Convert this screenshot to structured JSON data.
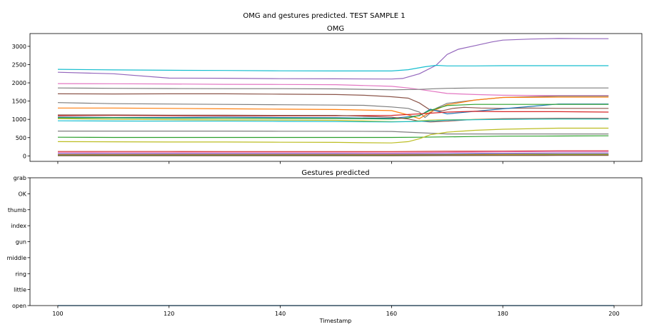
{
  "figure_title": "OMG and gestures predicted. TEST SAMPLE 1",
  "chart_data": [
    {
      "type": "line",
      "title": "OMG",
      "xlabel": "",
      "ylabel": "",
      "xlim": [
        95,
        205
      ],
      "ylim": [
        -150,
        3350
      ],
      "xticks": [
        100,
        120,
        140,
        160,
        180,
        200
      ],
      "xtick_labels_visible": false,
      "yticks": [
        0,
        500,
        1000,
        1500,
        2000,
        2500,
        3000
      ],
      "grid": false,
      "legend": "none",
      "series": [
        {
          "color": "#9467bd",
          "x": [
            100,
            110,
            120,
            130,
            140,
            150,
            160,
            162,
            165,
            168,
            170,
            172,
            175,
            178,
            180,
            185,
            190,
            195,
            199
          ],
          "values": [
            2290,
            2250,
            2130,
            2125,
            2115,
            2110,
            2105,
            2120,
            2250,
            2480,
            2780,
            2920,
            3020,
            3120,
            3170,
            3200,
            3215,
            3210,
            3210
          ]
        },
        {
          "color": "#17becf",
          "x": [
            100,
            110,
            120,
            130,
            140,
            150,
            160,
            163,
            166,
            168,
            170,
            175,
            180,
            190,
            199
          ],
          "values": [
            2370,
            2355,
            2345,
            2340,
            2330,
            2325,
            2325,
            2360,
            2440,
            2480,
            2465,
            2465,
            2470,
            2470,
            2470
          ]
        },
        {
          "color": "#e377c2",
          "x": [
            100,
            110,
            120,
            130,
            140,
            150,
            160,
            163,
            166,
            170,
            175,
            180,
            190,
            199
          ],
          "values": [
            1980,
            1975,
            1970,
            1960,
            1955,
            1950,
            1905,
            1860,
            1800,
            1710,
            1680,
            1660,
            1650,
            1650
          ]
        },
        {
          "color": "#7f7f7f",
          "x": [
            100,
            110,
            120,
            130,
            140,
            150,
            160,
            165,
            168,
            170,
            175,
            180,
            190,
            199
          ],
          "values": [
            1860,
            1850,
            1845,
            1840,
            1840,
            1835,
            1810,
            1820,
            1840,
            1850,
            1860,
            1860,
            1860,
            1860
          ]
        },
        {
          "color": "#8c564b",
          "x": [
            100,
            110,
            120,
            130,
            140,
            150,
            155,
            160,
            163,
            165,
            167,
            169,
            171,
            173,
            176,
            180,
            185,
            190,
            199
          ],
          "values": [
            1700,
            1695,
            1700,
            1700,
            1690,
            1680,
            1660,
            1620,
            1580,
            1450,
            1250,
            1230,
            1300,
            1330,
            1310,
            1300,
            1310,
            1300,
            1300
          ]
        },
        {
          "color": "#7f7f7f",
          "x": [
            100,
            110,
            120,
            130,
            140,
            150,
            155,
            160,
            163,
            165,
            166,
            168,
            170,
            175,
            180,
            190,
            199
          ],
          "values": [
            1460,
            1430,
            1420,
            1410,
            1400,
            1390,
            1385,
            1340,
            1300,
            1200,
            1050,
            1300,
            1440,
            1530,
            1600,
            1640,
            1640
          ]
        },
        {
          "color": "#ff7f0e",
          "x": [
            100,
            110,
            120,
            130,
            140,
            150,
            160,
            163,
            165,
            167,
            170,
            175,
            180,
            190,
            199
          ],
          "values": [
            1310,
            1310,
            1300,
            1290,
            1280,
            1270,
            1240,
            1120,
            1020,
            1200,
            1400,
            1530,
            1600,
            1610,
            1610
          ]
        },
        {
          "color": "#1f77b4",
          "x": [
            100,
            110,
            120,
            130,
            140,
            150,
            160,
            165,
            167,
            170,
            175,
            180,
            190,
            199
          ],
          "values": [
            1060,
            1050,
            1050,
            1060,
            1050,
            1045,
            1030,
            1100,
            1280,
            1150,
            1220,
            1290,
            1420,
            1420
          ]
        },
        {
          "color": "#2ca02c",
          "x": [
            100,
            110,
            120,
            130,
            140,
            150,
            160,
            163,
            165,
            167,
            170,
            175,
            180,
            190,
            199
          ],
          "values": [
            1040,
            1040,
            1030,
            1030,
            1025,
            1025,
            1010,
            1040,
            1110,
            1250,
            1380,
            1410,
            1410,
            1410,
            1410
          ]
        },
        {
          "color": "#d62728",
          "x": [
            100,
            110,
            120,
            130,
            140,
            150,
            160,
            165,
            170,
            175,
            180,
            190,
            199
          ],
          "values": [
            1100,
            1110,
            1100,
            1100,
            1095,
            1100,
            1110,
            1150,
            1200,
            1220,
            1210,
            1210,
            1200
          ]
        },
        {
          "color": "#8c564b",
          "x": [
            100,
            110,
            120,
            130,
            140,
            150,
            160,
            163,
            165,
            167,
            170,
            175,
            180,
            190,
            199
          ],
          "values": [
            1120,
            1120,
            1115,
            1115,
            1110,
            1110,
            1060,
            1010,
            950,
            930,
            950,
            1000,
            1020,
            1030,
            1030
          ]
        },
        {
          "color": "#bcbd22",
          "x": [
            100,
            110,
            120,
            130,
            140,
            150,
            160,
            163,
            165,
            167,
            170,
            175,
            180,
            190,
            199
          ],
          "values": [
            1020,
            1000,
            990,
            985,
            980,
            975,
            940,
            940,
            960,
            980,
            990,
            995,
            1000,
            1010,
            1010
          ]
        },
        {
          "color": "#17becf",
          "x": [
            100,
            110,
            120,
            130,
            140,
            150,
            160,
            165,
            168,
            170,
            175,
            180,
            190,
            199
          ],
          "values": [
            960,
            955,
            950,
            950,
            945,
            940,
            930,
            945,
            960,
            980,
            990,
            1000,
            1010,
            1010
          ]
        },
        {
          "color": "#7f7f7f",
          "x": [
            100,
            110,
            120,
            130,
            140,
            150,
            160,
            170,
            180,
            190,
            199
          ],
          "values": [
            680,
            680,
            680,
            680,
            675,
            675,
            670,
            600,
            600,
            600,
            600
          ]
        },
        {
          "color": "#2ca02c",
          "x": [
            100,
            110,
            120,
            130,
            140,
            150,
            160,
            165,
            170,
            175,
            180,
            190,
            199
          ],
          "values": [
            510,
            505,
            505,
            505,
            505,
            505,
            505,
            510,
            520,
            530,
            540,
            545,
            550
          ]
        },
        {
          "color": "#bcbd22",
          "x": [
            100,
            110,
            120,
            130,
            140,
            150,
            155,
            160,
            163,
            165,
            167,
            170,
            175,
            180,
            190,
            199
          ],
          "values": [
            390,
            385,
            380,
            380,
            375,
            370,
            360,
            355,
            390,
            470,
            580,
            650,
            700,
            730,
            760,
            760
          ]
        },
        {
          "color": "#d62728",
          "x": [
            100,
            110,
            120,
            130,
            140,
            150,
            160,
            170,
            180,
            190,
            199
          ],
          "values": [
            120,
            120,
            120,
            118,
            118,
            118,
            118,
            125,
            130,
            140,
            140
          ]
        },
        {
          "color": "#e377c2",
          "x": [
            100,
            110,
            120,
            130,
            140,
            150,
            160,
            170,
            180,
            190,
            199
          ],
          "values": [
            90,
            88,
            88,
            88,
            88,
            88,
            85,
            95,
            110,
            120,
            120
          ]
        },
        {
          "color": "#9467bd",
          "x": [
            100,
            110,
            120,
            130,
            140,
            150,
            160,
            170,
            180,
            190,
            199
          ],
          "values": [
            60,
            60,
            58,
            58,
            58,
            58,
            55,
            60,
            70,
            80,
            80
          ]
        },
        {
          "color": "#1f77b4",
          "x": [
            100,
            110,
            120,
            130,
            140,
            150,
            160,
            170,
            180,
            190,
            199
          ],
          "values": [
            40,
            40,
            38,
            38,
            38,
            38,
            36,
            40,
            45,
            50,
            50
          ]
        },
        {
          "color": "#ff7f0e",
          "x": [
            100,
            110,
            120,
            130,
            140,
            150,
            160,
            170,
            180,
            190,
            199
          ],
          "values": [
            30,
            30,
            28,
            28,
            28,
            28,
            28,
            30,
            35,
            40,
            40
          ]
        },
        {
          "color": "#2ca02c",
          "x": [
            100,
            110,
            120,
            130,
            140,
            150,
            160,
            170,
            180,
            190,
            199
          ],
          "values": [
            15,
            15,
            14,
            14,
            14,
            14,
            14,
            18,
            20,
            25,
            25
          ]
        },
        {
          "color": "#8c564b",
          "x": [
            100,
            110,
            120,
            130,
            140,
            150,
            160,
            170,
            180,
            190,
            199
          ],
          "values": [
            5,
            5,
            5,
            5,
            5,
            5,
            5,
            8,
            10,
            12,
            12
          ]
        }
      ]
    },
    {
      "type": "line",
      "title": "Gestures predicted",
      "xlabel": "Timestamp",
      "ylabel": "",
      "xlim": [
        95,
        205
      ],
      "ylim": [
        0,
        8
      ],
      "xticks": [
        100,
        120,
        140,
        160,
        180,
        200
      ],
      "xtick_labels": [
        "100",
        "120",
        "140",
        "160",
        "180",
        "200"
      ],
      "yticks": [
        0,
        1,
        2,
        3,
        4,
        5,
        6,
        7,
        8
      ],
      "ytick_labels": [
        "open",
        "little",
        "ring",
        "middle",
        "gun",
        "index",
        "thumb",
        "OK",
        "grab"
      ],
      "grid": false,
      "legend": "none",
      "series": [
        {
          "color": "#1f77b4",
          "x": [
            100,
            200
          ],
          "values": [
            0,
            0
          ]
        }
      ]
    }
  ]
}
